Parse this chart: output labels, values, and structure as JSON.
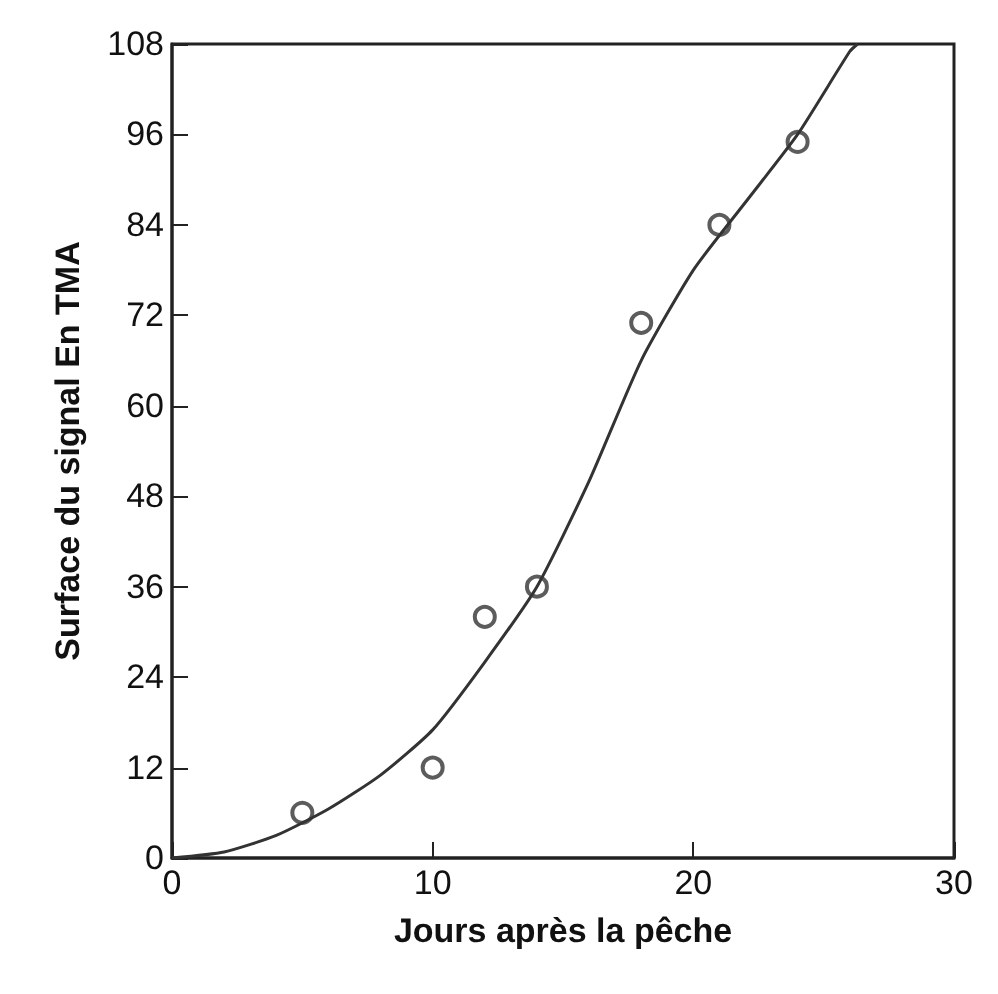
{
  "chart_data": {
    "type": "scatter",
    "xlabel": "Jours après la pêche",
    "ylabel": "Surface du signal En TMA",
    "xlim": [
      0,
      30
    ],
    "xticks": [
      0,
      10,
      20,
      30
    ],
    "ylim": [
      0,
      108
    ],
    "yticks": [
      0,
      12,
      24,
      36,
      48,
      60,
      72,
      84,
      96,
      108
    ],
    "grid": false,
    "marker": "circle",
    "series": [
      {
        "color": "#333333",
        "x": [
          5,
          10,
          12,
          14,
          18,
          21,
          24
        ],
        "values": [
          6,
          12,
          32,
          36,
          71,
          84,
          95
        ]
      },
      {
        "type": "line",
        "color": "#333333",
        "marker": "none",
        "line_style": "solid",
        "x": [
          0,
          2,
          4,
          6,
          8,
          10,
          12,
          14,
          16,
          18,
          20,
          22,
          24,
          26,
          26.3
        ],
        "values": [
          0,
          0.8,
          3,
          6.5,
          11,
          17,
          26,
          36,
          50,
          66,
          78,
          87,
          96,
          107,
          108
        ]
      }
    ]
  }
}
